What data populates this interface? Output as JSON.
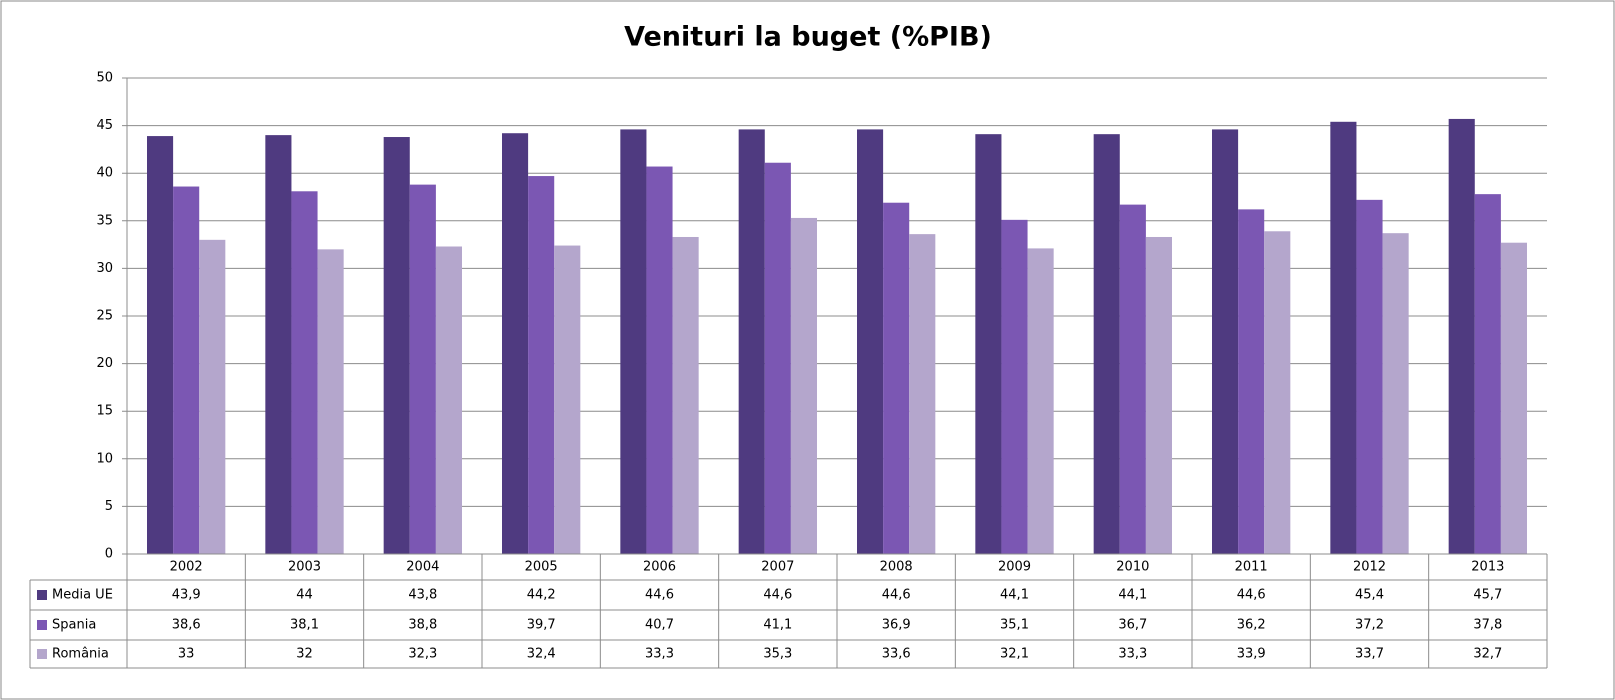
{
  "chart_data": {
    "type": "bar",
    "title": "Venituri la buget (%PIB)",
    "categories": [
      "2002",
      "2003",
      "2004",
      "2005",
      "2006",
      "2007",
      "2008",
      "2009",
      "2010",
      "2011",
      "2012",
      "2013"
    ],
    "series": [
      {
        "name": "Media UE",
        "color": "#4f3a80",
        "values": [
          43.9,
          44,
          43.8,
          44.2,
          44.6,
          44.6,
          44.6,
          44.1,
          44.1,
          44.6,
          45.4,
          45.7
        ],
        "value_labels": [
          "43,9",
          "44",
          "43,8",
          "44,2",
          "44,6",
          "44,6",
          "44,6",
          "44,1",
          "44,1",
          "44,6",
          "45,4",
          "45,7"
        ]
      },
      {
        "name": "Spania",
        "color": "#7b57b3",
        "values": [
          38.6,
          38.1,
          38.8,
          39.7,
          40.7,
          41.1,
          36.9,
          35.1,
          36.7,
          36.2,
          37.2,
          37.8
        ],
        "value_labels": [
          "38,6",
          "38,1",
          "38,8",
          "39,7",
          "40,7",
          "41,1",
          "36,9",
          "35,1",
          "36,7",
          "36,2",
          "37,2",
          "37,8"
        ]
      },
      {
        "name": "România",
        "color": "#b4a6cc",
        "values": [
          33,
          32,
          32.3,
          32.4,
          33.3,
          35.3,
          33.6,
          32.1,
          33.3,
          33.9,
          33.7,
          32.7
        ],
        "value_labels": [
          "33",
          "32",
          "32,3",
          "32,4",
          "33,3",
          "35,3",
          "33,6",
          "32,1",
          "33,3",
          "33,9",
          "33,7",
          "32,7"
        ]
      }
    ],
    "ylim": [
      0,
      50
    ],
    "yticks": [
      0,
      5,
      10,
      15,
      20,
      25,
      30,
      35,
      40,
      45,
      50
    ],
    "grid": true
  }
}
